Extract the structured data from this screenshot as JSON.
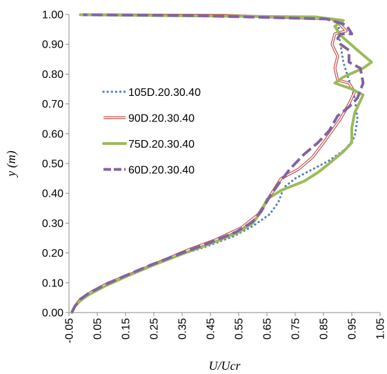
{
  "chart_data": {
    "type": "line",
    "title": "",
    "xlabel": "U/Ucr",
    "ylabel": "y (m)",
    "xlim": [
      -0.05,
      1.05
    ],
    "ylim": [
      0.0,
      1.0
    ],
    "xticks": [
      -0.05,
      0.05,
      0.15,
      0.25,
      0.35,
      0.45,
      0.55,
      0.65,
      0.75,
      0.85,
      0.95,
      1.05
    ],
    "xtick_labels": [
      "-0.05",
      "0.05",
      "0.15",
      "0.25",
      "0.35",
      "0.45",
      "0.55",
      "0.65",
      "0.75",
      "0.85",
      "0.95",
      "1.05"
    ],
    "yticks": [
      0.0,
      0.1,
      0.2,
      0.3,
      0.4,
      0.5,
      0.6,
      0.7,
      0.8,
      0.9,
      1.0
    ],
    "ytick_labels": [
      "0.00",
      "0.10",
      "0.20",
      "0.30",
      "0.40",
      "0.50",
      "0.60",
      "0.70",
      "0.80",
      "0.90",
      "1.00"
    ],
    "grid": false,
    "legend_position": "center-left",
    "series": [
      {
        "name": "105D.20.30.40",
        "color": "#4f81bd",
        "style": "dotted",
        "points": [
          [
            -0.04,
            0.0
          ],
          [
            -0.03,
            0.02
          ],
          [
            -0.01,
            0.04
          ],
          [
            0.02,
            0.06
          ],
          [
            0.06,
            0.08
          ],
          [
            0.12,
            0.11
          ],
          [
            0.22,
            0.15
          ],
          [
            0.33,
            0.19
          ],
          [
            0.43,
            0.22
          ],
          [
            0.53,
            0.255
          ],
          [
            0.6,
            0.29
          ],
          [
            0.66,
            0.33
          ],
          [
            0.69,
            0.37
          ],
          [
            0.71,
            0.42
          ],
          [
            0.75,
            0.45
          ],
          [
            0.81,
            0.48
          ],
          [
            0.87,
            0.51
          ],
          [
            0.93,
            0.55
          ],
          [
            0.96,
            0.59
          ],
          [
            0.97,
            0.65
          ],
          [
            0.96,
            0.72
          ],
          [
            0.94,
            0.78
          ],
          [
            0.92,
            0.84
          ],
          [
            0.91,
            0.9
          ],
          [
            0.9,
            0.95
          ],
          [
            0.92,
            0.975
          ],
          [
            0.85,
            0.99
          ],
          [
            0.3,
            0.998
          ],
          [
            0.0,
            0.999
          ]
        ]
      },
      {
        "name": "90D.20.30.40",
        "color": "#c0504d",
        "style": "double",
        "points": [
          [
            -0.04,
            0.0
          ],
          [
            -0.03,
            0.02
          ],
          [
            -0.01,
            0.045
          ],
          [
            0.03,
            0.07
          ],
          [
            0.09,
            0.1
          ],
          [
            0.17,
            0.13
          ],
          [
            0.27,
            0.17
          ],
          [
            0.37,
            0.21
          ],
          [
            0.47,
            0.245
          ],
          [
            0.56,
            0.285
          ],
          [
            0.62,
            0.33
          ],
          [
            0.66,
            0.39
          ],
          [
            0.7,
            0.45
          ],
          [
            0.76,
            0.48
          ],
          [
            0.81,
            0.52
          ],
          [
            0.85,
            0.57
          ],
          [
            0.88,
            0.61
          ],
          [
            0.91,
            0.65
          ],
          [
            0.94,
            0.7
          ],
          [
            0.96,
            0.74
          ],
          [
            0.94,
            0.77
          ],
          [
            0.9,
            0.78
          ],
          [
            0.89,
            0.82
          ],
          [
            0.9,
            0.86
          ],
          [
            0.88,
            0.9
          ],
          [
            0.89,
            0.935
          ],
          [
            0.93,
            0.945
          ],
          [
            0.91,
            0.965
          ],
          [
            0.88,
            0.985
          ],
          [
            0.5,
            0.997
          ],
          [
            0.0,
            0.999
          ]
        ]
      },
      {
        "name": "75D.20.30.40",
        "color": "#9bbb59",
        "style": "solid",
        "points": [
          [
            -0.04,
            0.0
          ],
          [
            -0.03,
            0.02
          ],
          [
            -0.01,
            0.04
          ],
          [
            0.02,
            0.06
          ],
          [
            0.08,
            0.09
          ],
          [
            0.15,
            0.12
          ],
          [
            0.25,
            0.16
          ],
          [
            0.36,
            0.2
          ],
          [
            0.46,
            0.235
          ],
          [
            0.55,
            0.27
          ],
          [
            0.6,
            0.3
          ],
          [
            0.63,
            0.34
          ],
          [
            0.65,
            0.38
          ],
          [
            0.7,
            0.41
          ],
          [
            0.78,
            0.44
          ],
          [
            0.83,
            0.47
          ],
          [
            0.87,
            0.5
          ],
          [
            0.92,
            0.54
          ],
          [
            0.95,
            0.57
          ],
          [
            0.95,
            0.62
          ],
          [
            0.96,
            0.67
          ],
          [
            0.99,
            0.73
          ],
          [
            0.95,
            0.75
          ],
          [
            0.89,
            0.77
          ],
          [
            0.92,
            0.79
          ],
          [
            0.99,
            0.82
          ],
          [
            1.02,
            0.84
          ],
          [
            0.97,
            0.88
          ],
          [
            0.91,
            0.93
          ],
          [
            0.89,
            0.96
          ],
          [
            0.92,
            0.98
          ],
          [
            0.82,
            0.992
          ],
          [
            0.2,
            0.997
          ],
          [
            -0.01,
            0.999
          ]
        ]
      },
      {
        "name": "60D.20.30.40",
        "color": "#8064a2",
        "style": "dashed",
        "points": [
          [
            -0.04,
            0.0
          ],
          [
            -0.03,
            0.02
          ],
          [
            -0.01,
            0.045
          ],
          [
            0.02,
            0.065
          ],
          [
            0.07,
            0.09
          ],
          [
            0.14,
            0.12
          ],
          [
            0.24,
            0.16
          ],
          [
            0.35,
            0.2
          ],
          [
            0.45,
            0.235
          ],
          [
            0.54,
            0.27
          ],
          [
            0.6,
            0.305
          ],
          [
            0.63,
            0.34
          ],
          [
            0.66,
            0.39
          ],
          [
            0.69,
            0.43
          ],
          [
            0.73,
            0.48
          ],
          [
            0.78,
            0.53
          ],
          [
            0.83,
            0.57
          ],
          [
            0.87,
            0.61
          ],
          [
            0.9,
            0.66
          ],
          [
            0.94,
            0.69
          ],
          [
            0.97,
            0.72
          ],
          [
            0.99,
            0.77
          ],
          [
            0.98,
            0.82
          ],
          [
            0.94,
            0.84
          ],
          [
            0.94,
            0.88
          ],
          [
            0.91,
            0.9
          ],
          [
            0.9,
            0.92
          ],
          [
            0.91,
            0.935
          ],
          [
            0.95,
            0.935
          ],
          [
            0.93,
            0.965
          ],
          [
            0.86,
            0.985
          ],
          [
            0.4,
            0.996
          ],
          [
            0.0,
            0.999
          ]
        ]
      }
    ]
  }
}
